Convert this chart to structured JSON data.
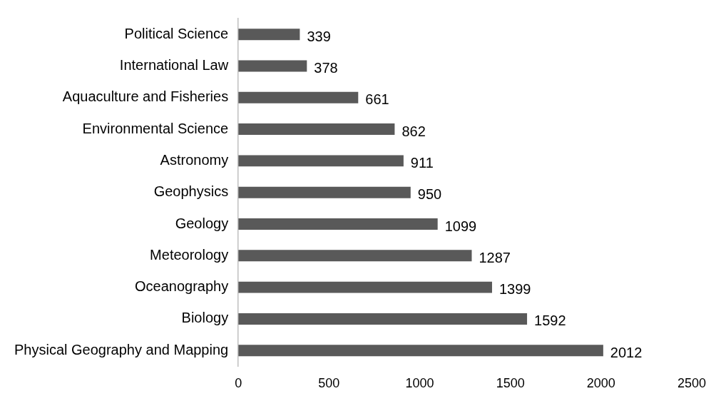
{
  "chart_data": {
    "type": "bar",
    "orientation": "horizontal",
    "categories": [
      "Political Science",
      "International Law",
      "Aquaculture and Fisheries",
      "Environmental Science",
      "Astronomy",
      "Geophysics",
      "Geology",
      "Meteorology",
      "Oceanography",
      "Biology",
      "Physical Geography and Mapping"
    ],
    "values": [
      339,
      378,
      661,
      862,
      911,
      950,
      1099,
      1287,
      1399,
      1592,
      2012
    ],
    "color": "#595959",
    "xlim": [
      0,
      2500
    ],
    "xticks": [
      0,
      500,
      1000,
      1500,
      2000,
      2500
    ],
    "data_labels": true,
    "grid": false,
    "legend": false
  }
}
